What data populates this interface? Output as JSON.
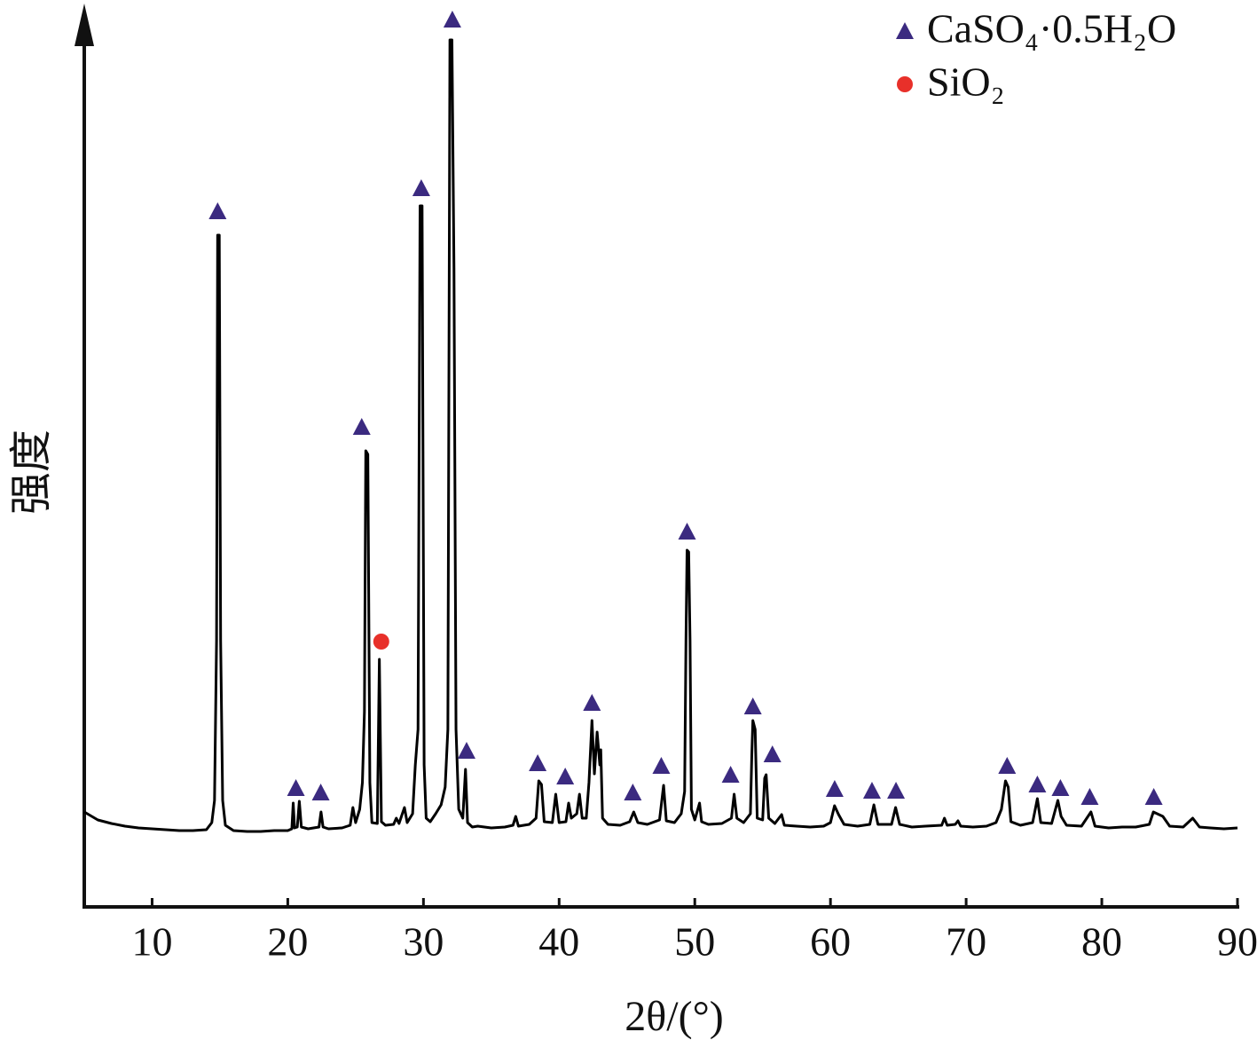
{
  "chart_data": {
    "type": "line",
    "x_label": "2θ/(°)",
    "y_label": "强度",
    "xlim": [
      5,
      90
    ],
    "xticks": [
      10,
      20,
      30,
      40,
      50,
      60,
      70,
      80,
      90
    ],
    "ylim": [
      0,
      100
    ],
    "color": "#000000",
    "legend": "upper right",
    "x": [
      5,
      6,
      7,
      8,
      9,
      10,
      11,
      12,
      13,
      14,
      14.4,
      14.6,
      14.75,
      14.83,
      14.95,
      15.05,
      15.2,
      15.4,
      16,
      17,
      18,
      19,
      20,
      20.3,
      20.4,
      20.5,
      20.7,
      20.85,
      21,
      21.5,
      22.3,
      22.45,
      22.6,
      23,
      24,
      24.6,
      24.8,
      25,
      25.3,
      25.5,
      25.65,
      25.75,
      25.9,
      26.05,
      26.2,
      26.6,
      26.75,
      26.9,
      27.2,
      27.8,
      28,
      28.2,
      28.6,
      28.8,
      29.2,
      29.4,
      29.6,
      29.75,
      29.9,
      30.05,
      30.2,
      30.5,
      30.9,
      31.3,
      31.6,
      31.8,
      31.95,
      32.1,
      32.25,
      32.4,
      32.6,
      32.9,
      33.1,
      33.25,
      33.6,
      34,
      35,
      36,
      36.6,
      36.8,
      37,
      37.8,
      38.3,
      38.5,
      38.7,
      38.9,
      39.5,
      39.75,
      40,
      40.5,
      40.7,
      40.9,
      41.3,
      41.5,
      41.7,
      42,
      42.2,
      42.42,
      42.6,
      42.8,
      43,
      43.07,
      43.2,
      43.6,
      44.5,
      45.2,
      45.5,
      45.8,
      46.5,
      47.4,
      47.7,
      47.9,
      48.5,
      49,
      49.25,
      49.35,
      49.43,
      49.55,
      49.65,
      49.75,
      50,
      50.35,
      50.5,
      51,
      52,
      52.7,
      52.9,
      53.1,
      53.6,
      54.1,
      54.2,
      54.28,
      54.45,
      54.6,
      55,
      55.15,
      55.26,
      55.45,
      55.9,
      56.4,
      56.6,
      57.5,
      58.5,
      59.5,
      60,
      60.3,
      60.6,
      61,
      62,
      62.9,
      63.2,
      63.5,
      64.5,
      64.8,
      65.1,
      66,
      67,
      68.2,
      68.4,
      68.6,
      69.2,
      69.4,
      69.6,
      70.5,
      71.5,
      72.2,
      72.6,
      72.9,
      73.1,
      73.3,
      74,
      74.9,
      75.25,
      75.5,
      76.3,
      76.76,
      77,
      77.4,
      78.5,
      79.2,
      79.5,
      80.5,
      81.5,
      82.5,
      83.5,
      83.8,
      84.5,
      85,
      86,
      86.7,
      87.2,
      88,
      89,
      90
    ],
    "values": [
      10.7,
      9.8,
      9.4,
      9.1,
      8.9,
      8.8,
      8.7,
      8.6,
      8.6,
      8.7,
      9.5,
      12,
      30,
      75.7,
      75.7,
      30,
      12,
      9.2,
      8.6,
      8.5,
      8.5,
      8.6,
      8.6,
      8.8,
      11.7,
      8.9,
      9,
      11.9,
      9,
      8.8,
      9,
      10.7,
      9,
      8.8,
      8.9,
      9.2,
      11.2,
      9.5,
      11,
      14,
      22,
      51.4,
      51,
      14,
      9.5,
      9.4,
      27.9,
      9.6,
      9.2,
      9.3,
      10,
      9.4,
      11.2,
      9.5,
      10.5,
      16,
      20,
      79,
      79,
      16,
      10,
      9.6,
      10.5,
      11.5,
      13.5,
      20,
      97.7,
      97.7,
      72,
      20,
      11,
      10,
      15.5,
      9.5,
      9,
      9.1,
      8.9,
      9,
      9.2,
      10.2,
      9.1,
      9.3,
      10,
      14.2,
      13.8,
      9.6,
      9.5,
      12.7,
      9.5,
      9.6,
      11.7,
      10,
      10.5,
      12.7,
      10,
      10,
      14,
      21,
      15,
      19.7,
      16,
      17.7,
      10,
      9.3,
      9.2,
      9.6,
      10.7,
      9.5,
      9.3,
      9.8,
      13.7,
      9.7,
      9.5,
      10.5,
      13,
      30,
      40.2,
      40,
      30,
      11,
      9.8,
      11.7,
      9.6,
      9.3,
      9.4,
      10,
      12.7,
      10,
      9.5,
      10.5,
      17,
      21,
      20,
      10,
      9.8,
      14.5,
      14.9,
      10,
      9.4,
      10.4,
      9.2,
      9.1,
      9,
      9.1,
      9.5,
      11.4,
      10.4,
      9.3,
      9.1,
      9.3,
      11.5,
      9.3,
      9.3,
      11.2,
      9.3,
      9,
      9.1,
      9.2,
      10,
      9.2,
      9.3,
      9.7,
      9.1,
      9,
      9.1,
      9.5,
      11,
      14.2,
      13.5,
      9.6,
      9.2,
      9.5,
      12.2,
      9.5,
      9.4,
      12,
      10.2,
      9.2,
      9.1,
      10.7,
      9.1,
      8.9,
      9,
      9,
      9.3,
      10.7,
      10.2,
      9.1,
      9,
      10,
      9,
      8.9,
      8.8,
      8.9
    ],
    "markers": [
      {
        "name": "CaSO₄·0.5H₂O",
        "color": "#3b2a80",
        "marker": "triangle",
        "x": [
          14.83,
          20.6,
          22.43,
          25.45,
          29.84,
          32.13,
          33.18,
          38.42,
          40.45,
          42.42,
          45.43,
          47.53,
          49.43,
          52.64,
          54.28,
          55.72,
          60.31,
          63.06,
          64.83,
          73.02,
          75.25,
          76.95,
          79.11,
          83.83
        ],
        "values": [
          78.4,
          13.4,
          12.9,
          54.1,
          81,
          100,
          17.6,
          16.2,
          14.7,
          23,
          12.9,
          15.9,
          42.3,
          14.9,
          22.6,
          17.2,
          13.3,
          13.1,
          13.1,
          15.9,
          13.8,
          13.4,
          12.4,
          12.4
        ]
      },
      {
        "name": "SiO₂",
        "color": "#e8302a",
        "marker": "circle",
        "x": [
          26.89
        ],
        "values": [
          29.9
        ]
      }
    ]
  }
}
